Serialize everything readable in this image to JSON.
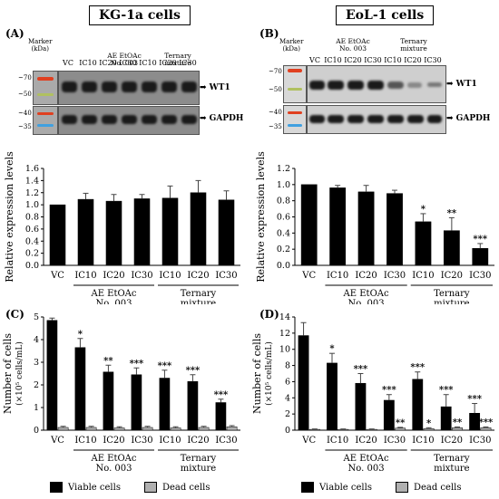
{
  "panels": {
    "left_title": "KG-1a cells",
    "right_title": "EoL-1 cells",
    "A": "(A)",
    "B": "(B)",
    "C": "(C)",
    "D": "(D)"
  },
  "blot": {
    "marker_label": "Marker\n(kDa)",
    "left_kda_top": [
      "~70",
      "~50"
    ],
    "left_kda_bottom": [
      "~40",
      "~35"
    ],
    "right_kda_top": [
      "~70",
      "~50"
    ],
    "right_kda_bottom": [
      "~40",
      "~35"
    ],
    "lanes": [
      "VC",
      "IC10",
      "IC20",
      "IC30",
      "IC10",
      "IC20",
      "IC30"
    ],
    "group1": "AE EtOAc\nNo. 003",
    "group2": "Ternary\nmixture",
    "wt1": "➡ WT1",
    "gapdh": "➡ GAPDH"
  },
  "axis_groups": {
    "group1": "AE EtOAc\nNo. 003",
    "group2": "Ternary\nmixture"
  },
  "colors": {
    "bar": "#000000",
    "dead": "#b0b0b0"
  },
  "legend": {
    "viable": "Viable cells",
    "dead": "Dead cells"
  },
  "chart_data": [
    {
      "id": "A-bars",
      "type": "bar",
      "ylabel": "Relative expression levels",
      "categories": [
        "VC",
        "IC10",
        "IC20",
        "IC30",
        "IC10",
        "IC20",
        "IC30"
      ],
      "values": [
        1.0,
        1.09,
        1.06,
        1.1,
        1.11,
        1.2,
        1.08
      ],
      "errors": [
        0.0,
        0.1,
        0.11,
        0.07,
        0.2,
        0.2,
        0.15
      ],
      "stars": [
        "",
        "",
        "",
        "",
        "",
        "",
        ""
      ],
      "ylim": [
        0,
        1.6
      ],
      "yticks": [
        "0.0",
        "0.2",
        "0.4",
        "0.6",
        "0.8",
        "1.0",
        "1.2",
        "1.4",
        "1.6"
      ]
    },
    {
      "id": "B-bars",
      "type": "bar",
      "ylabel": "Relative expression levels",
      "categories": [
        "VC",
        "IC10",
        "IC20",
        "IC30",
        "IC10",
        "IC20",
        "IC30"
      ],
      "values": [
        1.0,
        0.96,
        0.91,
        0.89,
        0.54,
        0.43,
        0.21
      ],
      "errors": [
        0.0,
        0.03,
        0.08,
        0.04,
        0.1,
        0.16,
        0.06
      ],
      "stars": [
        "",
        "",
        "",
        "",
        "*",
        "**",
        "***"
      ],
      "ylim": [
        0,
        1.2
      ],
      "yticks": [
        "0.0",
        "0.2",
        "0.4",
        "0.6",
        "0.8",
        "1.0",
        "1.2"
      ]
    },
    {
      "id": "C-bars",
      "type": "bar",
      "ylabel": "Number of cells",
      "ylabel2": "(×10⁵ cells/mL)",
      "categories": [
        "VC",
        "IC10",
        "IC20",
        "IC30",
        "IC10",
        "IC20",
        "IC30"
      ],
      "series": [
        {
          "name": "Viable cells",
          "values": [
            4.85,
            3.65,
            2.57,
            2.45,
            2.3,
            2.15,
            1.22
          ],
          "errors": [
            0.1,
            0.4,
            0.3,
            0.3,
            0.35,
            0.3,
            0.15
          ],
          "stars": [
            "",
            "*",
            "**",
            "***",
            "***",
            "***",
            "***"
          ]
        },
        {
          "name": "Dead cells",
          "values": [
            0.12,
            0.12,
            0.1,
            0.12,
            0.1,
            0.12,
            0.15
          ],
          "errors": [
            0.05,
            0.05,
            0.05,
            0.05,
            0.05,
            0.05,
            0.05
          ],
          "stars": [
            "",
            "",
            "",
            "",
            "",
            "",
            ""
          ]
        }
      ],
      "ylim": [
        0,
        5
      ],
      "yticks": [
        "0",
        "1",
        "2",
        "3",
        "4",
        "5"
      ]
    },
    {
      "id": "D-bars",
      "type": "bar",
      "ylabel": "Number of cells",
      "ylabel2": "(×10⁵ cells/mL)",
      "categories": [
        "VC",
        "IC10",
        "IC20",
        "IC30",
        "IC10",
        "IC20",
        "IC30"
      ],
      "series": [
        {
          "name": "Viable cells",
          "values": [
            11.7,
            8.3,
            5.8,
            3.7,
            6.3,
            2.9,
            2.1
          ],
          "errors": [
            1.6,
            1.2,
            1.2,
            0.7,
            0.9,
            1.5,
            1.2
          ],
          "stars": [
            "",
            "*",
            "***",
            "***",
            "***",
            "***",
            "***"
          ]
        },
        {
          "name": "Dead cells",
          "values": [
            0.1,
            0.1,
            0.1,
            0.25,
            0.2,
            0.3,
            0.3
          ],
          "errors": [
            0.05,
            0.05,
            0.05,
            0.1,
            0.1,
            0.1,
            0.1
          ],
          "stars": [
            "",
            "",
            "",
            "**",
            "*",
            "**",
            "***"
          ]
        }
      ],
      "ylim": [
        0,
        14
      ],
      "yticks": [
        "0",
        "2",
        "4",
        "6",
        "8",
        "10",
        "12",
        "14"
      ]
    }
  ]
}
